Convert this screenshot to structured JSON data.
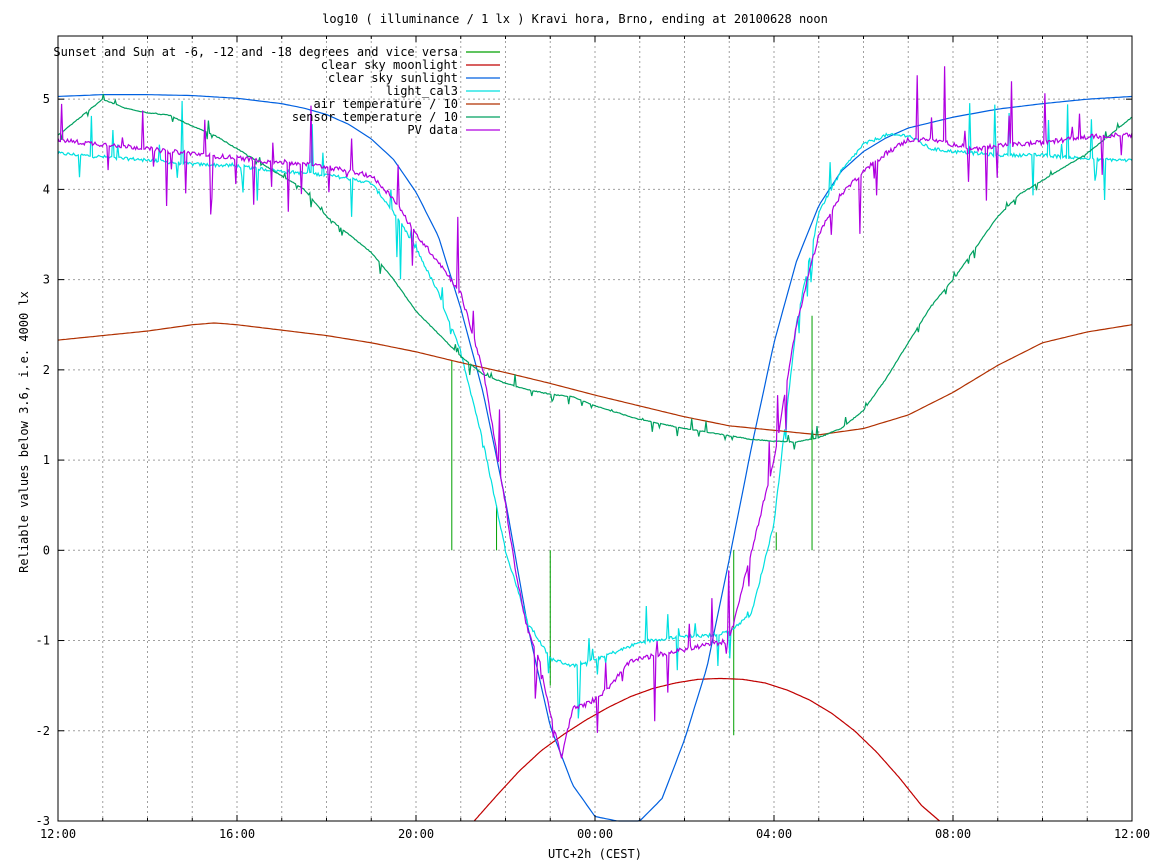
{
  "chart_data": {
    "type": "line",
    "title": "log10 ( illuminance / 1 lx ) Kravi hora, Brno, ending at 20100628 noon",
    "xlabel": "UTC+2h (CEST)",
    "ylabel": "Reliable values below 3.6, i.e. 4000 lx",
    "xlim": [
      0,
      24
    ],
    "ylim": [
      -3,
      5.7
    ],
    "x_unit": "hours after 12:00",
    "x_ticks": [
      {
        "value": 0,
        "label": "12:00"
      },
      {
        "value": 4,
        "label": "16:00"
      },
      {
        "value": 8,
        "label": "20:00"
      },
      {
        "value": 12,
        "label": "00:00"
      },
      {
        "value": 16,
        "label": "04:00"
      },
      {
        "value": 20,
        "label": "08:00"
      },
      {
        "value": 24,
        "label": "12:00"
      }
    ],
    "x_minor_step": 1,
    "y_ticks": [
      -3,
      -2,
      -1,
      0,
      1,
      2,
      3,
      4,
      5
    ],
    "grid": true,
    "legend_position": "top-left",
    "series": [
      {
        "name": "Sunset and Sun at -6, -12 and -18 degrees and vice versa",
        "color": "#00a000",
        "style": "vlines",
        "x": [
          8.8,
          9.8,
          11.0,
          15.1,
          16.05,
          16.85
        ],
        "y": [
          2.1,
          0.5,
          -1.5,
          -2.05,
          0.2,
          2.6
        ]
      },
      {
        "name": "clear sky moonlight",
        "color": "#c00000",
        "x": [
          9.3,
          9.8,
          10.3,
          10.8,
          11.3,
          11.8,
          12.3,
          12.8,
          13.3,
          13.8,
          14.3,
          14.8,
          15.3,
          15.8,
          16.3,
          16.8,
          17.3,
          17.8,
          18.3,
          18.8,
          19.3,
          19.7
        ],
        "y": [
          -3.0,
          -2.72,
          -2.45,
          -2.22,
          -2.04,
          -1.88,
          -1.74,
          -1.62,
          -1.53,
          -1.47,
          -1.43,
          -1.42,
          -1.43,
          -1.47,
          -1.55,
          -1.66,
          -1.81,
          -2.0,
          -2.24,
          -2.52,
          -2.83,
          -3.0
        ]
      },
      {
        "name": "clear sky sunlight",
        "color": "#0060e0",
        "x": [
          0,
          1,
          2,
          3,
          4,
          5,
          5.5,
          6,
          6.5,
          7,
          7.5,
          8,
          8.5,
          9,
          9.5,
          10,
          10.5,
          11,
          11.5,
          12,
          12.5,
          13,
          13.5,
          14,
          14.5,
          15,
          15.5,
          16,
          16.5,
          17,
          17.5,
          18,
          18.5,
          19,
          20,
          21,
          22,
          23,
          24
        ],
        "y": [
          5.03,
          5.05,
          5.05,
          5.04,
          5.01,
          4.95,
          4.9,
          4.83,
          4.72,
          4.56,
          4.33,
          3.97,
          3.48,
          2.68,
          1.75,
          0.55,
          -0.85,
          -1.95,
          -2.6,
          -2.95,
          -3.0,
          -3.0,
          -2.75,
          -2.1,
          -1.3,
          -0.1,
          1.15,
          2.3,
          3.2,
          3.82,
          4.2,
          4.42,
          4.57,
          4.68,
          4.8,
          4.89,
          4.95,
          5.0,
          5.03
        ]
      },
      {
        "name": "light_cal3",
        "color": "#00e0e0",
        "x": [
          0,
          0.5,
          1,
          1.5,
          2,
          2.5,
          3,
          3.5,
          4,
          4.5,
          5,
          5.5,
          6,
          6.5,
          7,
          7.5,
          8,
          8.5,
          9,
          9.5,
          10,
          10.5,
          11,
          11.5,
          12,
          12.5,
          13,
          13.5,
          14,
          14.5,
          15,
          15.5,
          16,
          16.5,
          17,
          17.5,
          18,
          18.5,
          19,
          19.5,
          20,
          20.5,
          21,
          21.5,
          22,
          22.5,
          23,
          23.5,
          24
        ],
        "y": [
          4.4,
          4.38,
          4.36,
          4.34,
          4.33,
          4.3,
          4.28,
          4.27,
          4.26,
          4.23,
          4.2,
          4.18,
          4.16,
          4.12,
          4.07,
          3.75,
          3.35,
          2.85,
          2.2,
          1.2,
          0.0,
          -0.8,
          -1.2,
          -1.28,
          -1.2,
          -1.12,
          -1.02,
          -0.98,
          -0.95,
          -0.95,
          -0.9,
          -0.7,
          0.3,
          2.5,
          3.75,
          4.2,
          4.5,
          4.6,
          4.6,
          4.45,
          4.42,
          4.4,
          4.38,
          4.38,
          4.38,
          4.36,
          4.34,
          4.33,
          4.32
        ],
        "noise": 0.25
      },
      {
        "name": "air temperature / 10",
        "color": "#b03000",
        "x": [
          0,
          1,
          2,
          3,
          3.5,
          4,
          5,
          6,
          7,
          8,
          9,
          10,
          11,
          12,
          13,
          14,
          15,
          16,
          17,
          18,
          19,
          20,
          21,
          22,
          23,
          24
        ],
        "y": [
          2.33,
          2.38,
          2.43,
          2.5,
          2.52,
          2.5,
          2.44,
          2.38,
          2.3,
          2.2,
          2.08,
          1.97,
          1.85,
          1.72,
          1.6,
          1.48,
          1.38,
          1.33,
          1.28,
          1.35,
          1.5,
          1.75,
          2.05,
          2.3,
          2.42,
          2.5
        ]
      },
      {
        "name": "sensor temperature / 10",
        "color": "#00a060",
        "x": [
          0,
          0.5,
          1,
          1.5,
          2,
          2.5,
          3,
          3.5,
          4,
          4.5,
          5,
          5.5,
          6,
          6.5,
          7,
          7.5,
          8,
          8.5,
          9,
          9.5,
          10,
          10.5,
          11,
          11.5,
          12,
          13,
          14,
          15,
          15.5,
          16,
          16.5,
          17,
          17.5,
          18,
          18.5,
          19,
          19.5,
          20,
          20.5,
          21,
          21.5,
          22,
          22.5,
          23,
          23.5,
          24
        ],
        "y": [
          4.6,
          4.8,
          5.0,
          4.9,
          4.85,
          4.82,
          4.7,
          4.6,
          4.45,
          4.3,
          4.15,
          4.0,
          3.7,
          3.5,
          3.3,
          3.0,
          2.65,
          2.4,
          2.15,
          1.95,
          1.85,
          1.78,
          1.73,
          1.7,
          1.6,
          1.45,
          1.35,
          1.27,
          1.23,
          1.21,
          1.2,
          1.25,
          1.35,
          1.55,
          1.9,
          2.3,
          2.7,
          3.0,
          3.35,
          3.7,
          3.95,
          4.1,
          4.25,
          4.4,
          4.6,
          4.8
        ],
        "noise": 0.06
      },
      {
        "name": "PV data",
        "color": "#b000e0",
        "x": [
          0,
          0.5,
          1,
          1.5,
          2,
          2.5,
          3,
          3.5,
          4,
          4.5,
          5,
          5.5,
          6,
          6.5,
          7,
          7.5,
          8,
          8.5,
          9,
          9.5,
          10,
          10.25,
          10.5,
          10.75,
          11,
          11.25,
          11.5,
          11.75,
          12,
          12.25,
          12.5,
          12.75,
          13,
          13.5,
          14,
          14.5,
          15,
          15.5,
          16,
          16.5,
          17,
          17.5,
          18,
          18.5,
          19,
          19.5,
          20,
          20.5,
          21,
          21.5,
          22,
          22.5,
          23,
          23.5,
          24
        ],
        "y": [
          4.55,
          4.52,
          4.5,
          4.48,
          4.45,
          4.42,
          4.4,
          4.37,
          4.35,
          4.32,
          4.3,
          4.28,
          4.25,
          4.2,
          4.15,
          3.9,
          3.5,
          3.2,
          2.85,
          2.0,
          0.5,
          -0.3,
          -0.9,
          -1.2,
          -1.8,
          -2.3,
          -1.75,
          -1.72,
          -1.65,
          -1.55,
          -1.4,
          -1.25,
          -1.2,
          -1.15,
          -1.1,
          -1.05,
          -1.0,
          0.0,
          1.0,
          2.5,
          3.5,
          3.95,
          4.2,
          4.4,
          4.55,
          4.55,
          4.5,
          4.45,
          4.48,
          4.5,
          4.52,
          4.55,
          4.58,
          4.6,
          4.6
        ],
        "noise": 0.35
      }
    ]
  }
}
